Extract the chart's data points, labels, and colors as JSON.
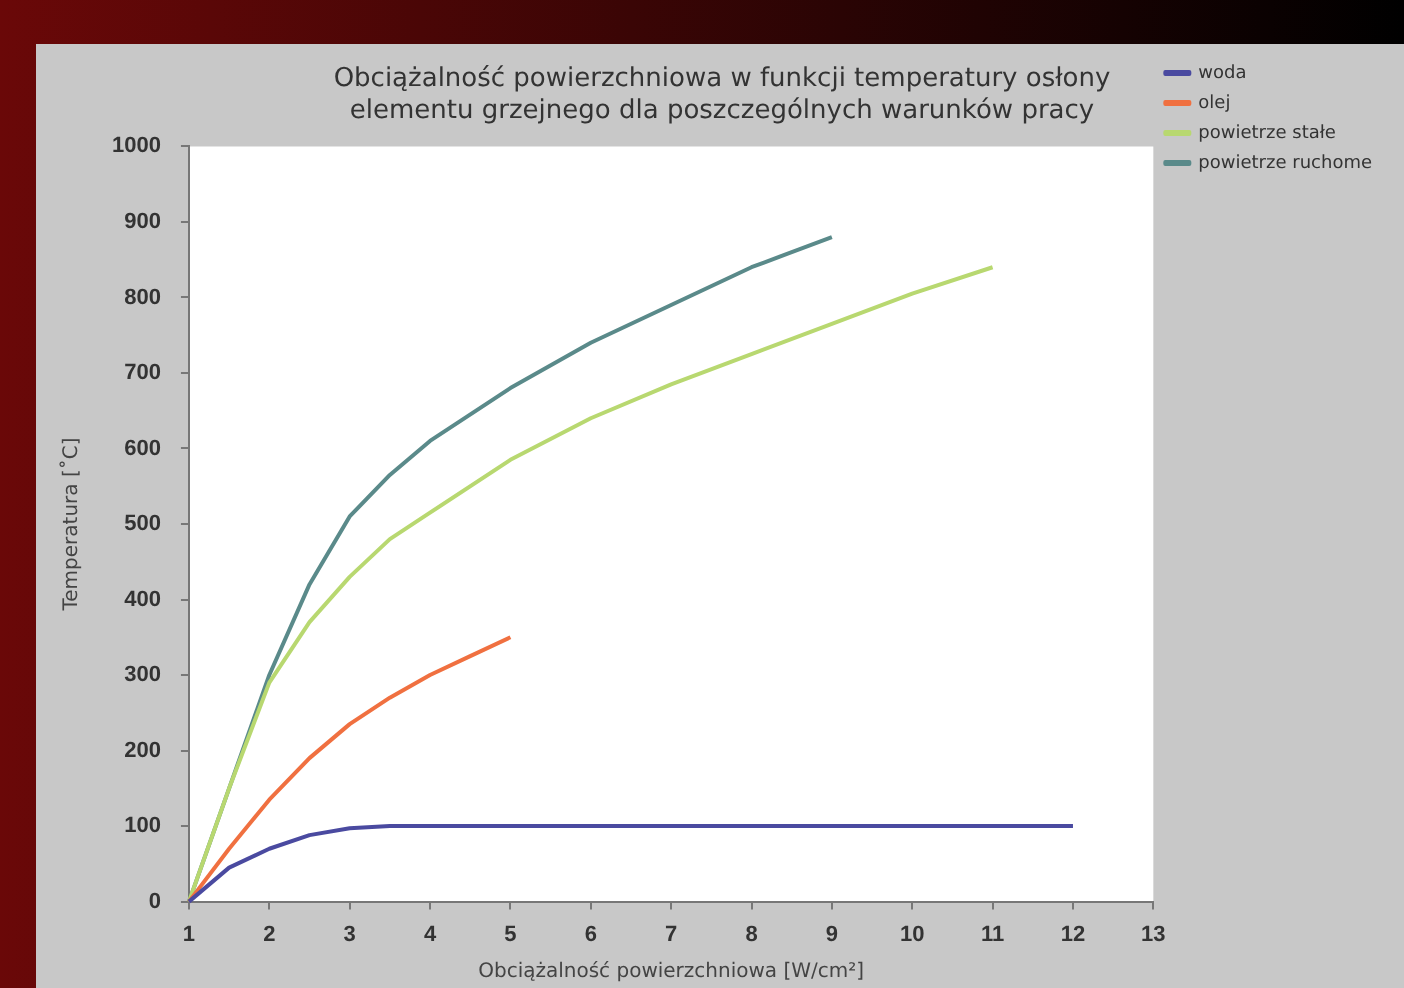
{
  "chart_data": {
    "type": "line",
    "title": "Obciążalność powierzchniowa w funkcji temperatury osłony\nelementu grzejnego dla poszczególnych warunków pracy",
    "xlabel": "Obciążalność powierzchniowa [W/cm²]",
    "ylabel": "Temperatura [˚C]",
    "xlim": [
      1,
      13
    ],
    "xticks": [
      1,
      2,
      3,
      4,
      5,
      6,
      7,
      8,
      9,
      10,
      11,
      12,
      13
    ],
    "ylim": [
      0,
      1000
    ],
    "yticks": [
      0,
      100,
      200,
      300,
      400,
      500,
      600,
      700,
      800,
      900,
      1000
    ],
    "grid": false,
    "legend": "right",
    "marker": "none",
    "line_style": "solid",
    "series": [
      {
        "name": "woda",
        "color": "#4a4aa0",
        "x": [
          1,
          1.5,
          2,
          2.5,
          3,
          3.5,
          4,
          6,
          8,
          10,
          12
        ],
        "values": [
          0,
          45,
          70,
          88,
          97,
          100,
          100,
          100,
          100,
          100,
          100
        ]
      },
      {
        "name": "olej",
        "color": "#f07040",
        "x": [
          1,
          1.5,
          2,
          2.5,
          3,
          3.5,
          4,
          4.5,
          5
        ],
        "values": [
          0,
          70,
          135,
          190,
          235,
          270,
          300,
          325,
          350
        ]
      },
      {
        "name": "powietrze stałe",
        "color": "#b8d870",
        "x": [
          1,
          1.5,
          2,
          2.5,
          3,
          3.5,
          4,
          5,
          6,
          7,
          8,
          9,
          10,
          11
        ],
        "values": [
          0,
          150,
          290,
          370,
          430,
          480,
          515,
          585,
          640,
          685,
          725,
          765,
          805,
          840
        ]
      },
      {
        "name": "powietrze ruchome",
        "color": "#5a8a8a",
        "x": [
          1,
          1.5,
          2,
          2.5,
          3,
          3.5,
          4,
          5,
          6,
          7,
          8,
          9
        ],
        "values": [
          0,
          150,
          300,
          420,
          510,
          565,
          610,
          680,
          740,
          790,
          840,
          880
        ]
      }
    ]
  }
}
